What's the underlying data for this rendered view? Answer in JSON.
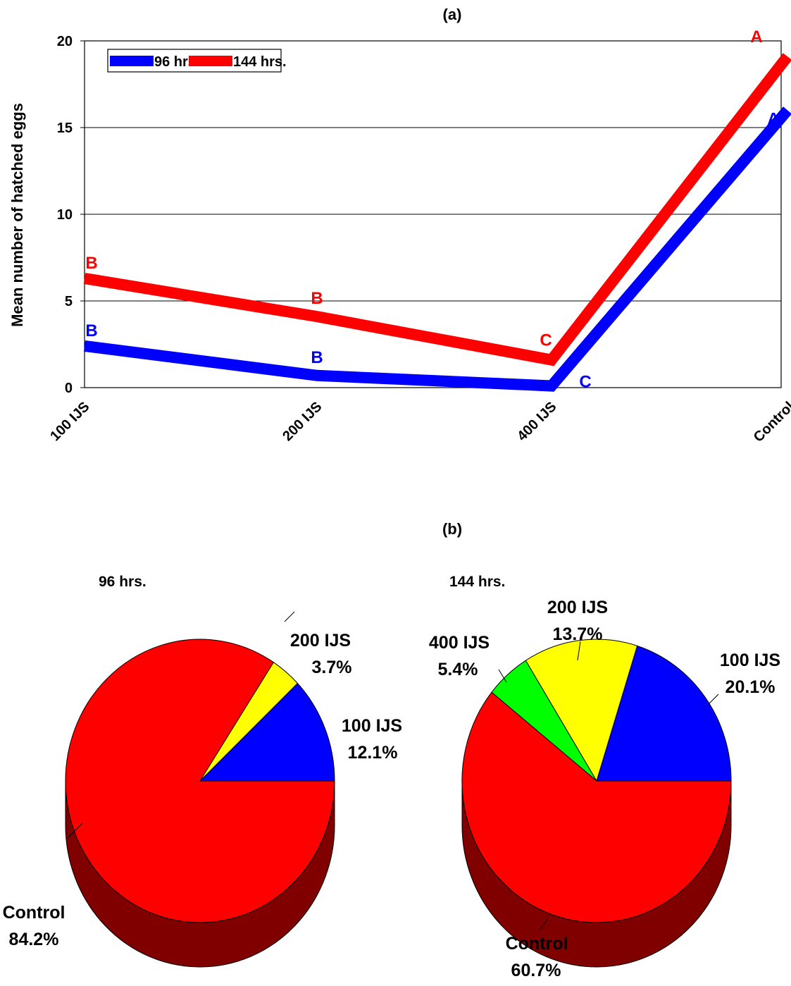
{
  "colors": {
    "blue": "#0000ff",
    "red": "#ff0000",
    "yellow": "#ffff00",
    "green": "#00ff00",
    "red_dark": "#800000"
  },
  "chart_data": [
    {
      "type": "line",
      "title": "(a)",
      "xlabel": "",
      "ylabel": "Mean number of hatched eggs",
      "categories": [
        "100 IJS",
        "200 IJS",
        "400 IJS",
        "Control"
      ],
      "ylim": [
        0,
        20
      ],
      "yticks": [
        "0",
        "5",
        "10",
        "15",
        "20"
      ],
      "grid": true,
      "legend": "top-left",
      "series": [
        {
          "name": "96 hrs.",
          "color": "#0000ff",
          "values": [
            2.4,
            0.7,
            0.1,
            16.0
          ],
          "letters": [
            "B",
            "B",
            "C",
            "A"
          ]
        },
        {
          "name": "144 hrs.",
          "color": "#ff0000",
          "values": [
            6.3,
            4.1,
            1.6,
            19.1
          ],
          "letters": [
            "B",
            "B",
            "C",
            "A"
          ]
        }
      ]
    },
    {
      "type": "pie",
      "title": "(b)",
      "subtitle": "96 hrs.",
      "slices": [
        {
          "label": "100 IJS",
          "value": 12.1,
          "text": "12.1%",
          "color": "#0000ff"
        },
        {
          "label": "200 IJS",
          "value": 3.7,
          "text": "3.7%",
          "color": "#ffff00"
        },
        {
          "label": "Control",
          "value": 84.2,
          "text": "84.2%",
          "color": "#ff0000"
        }
      ]
    },
    {
      "type": "pie",
      "subtitle": "144 hrs.",
      "slices": [
        {
          "label": "100 IJS",
          "value": 20.1,
          "text": "20.1%",
          "color": "#0000ff"
        },
        {
          "label": "200 IJS",
          "value": 13.7,
          "text": "13.7%",
          "color": "#ffff00"
        },
        {
          "label": "400 IJS",
          "value": 5.4,
          "text": "5.4%",
          "color": "#00ff00"
        },
        {
          "label": "Control",
          "value": 60.7,
          "text": "60.7%",
          "color": "#ff0000"
        }
      ]
    }
  ]
}
